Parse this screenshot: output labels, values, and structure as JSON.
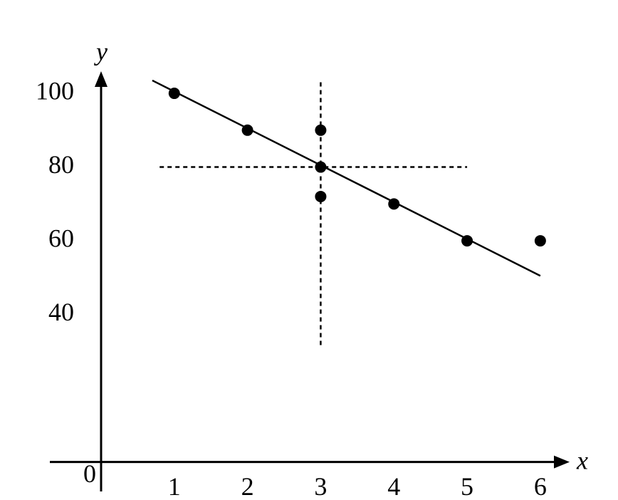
{
  "chart_data": {
    "type": "scatter",
    "x_label": "x",
    "y_label": "y",
    "origin_label": "0",
    "xlim": [
      -0.7,
      6.4
    ],
    "ylim": [
      -8,
      106
    ],
    "xticks": [
      1,
      2,
      3,
      4,
      5,
      6
    ],
    "yticks": [
      40,
      60,
      80,
      100
    ],
    "series": [
      {
        "color": "#000000",
        "x": [
          1,
          2,
          3,
          3,
          3,
          4,
          5,
          6
        ],
        "values": [
          100,
          90,
          90,
          80,
          72,
          70,
          60,
          60
        ]
      }
    ],
    "fit_line": {
      "x": [
        0.7,
        6
      ],
      "values": [
        103.5,
        50.5
      ]
    },
    "reference_lines": [
      {
        "x": [
          3,
          3
        ],
        "values": [
          103,
          31
        ]
      },
      {
        "x": [
          0.8,
          5
        ],
        "values": [
          80,
          80
        ]
      }
    ]
  }
}
